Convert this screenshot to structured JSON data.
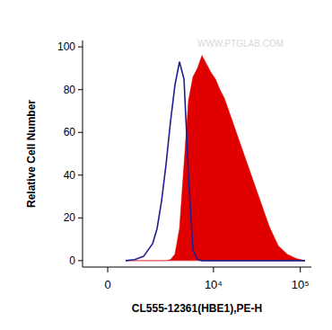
{
  "chart_data": {
    "type": "histogram",
    "x_label": "CL555-12361(HBE1),PE-H",
    "y_label": "Relative Cell Number",
    "annotation": "WWW.PTGLAB.COM",
    "x": [
      602,
      946,
      1342,
      1820,
      2090,
      2393,
      2729,
      3101,
      3513,
      3990,
      4518,
      5110,
      5766,
      6508,
      7350,
      8303,
      9365,
      10537,
      11868,
      13370,
      15067,
      16960,
      21514,
      27277,
      34615,
      43920,
      55678,
      70696,
      89500,
      113553
    ],
    "series": [
      {
        "type": "area",
        "color": "#e00000",
        "values": [
          0,
          0,
          0,
          0,
          0,
          0,
          0,
          0.5,
          3,
          15,
          45,
          75,
          86,
          90,
          96,
          92,
          88,
          85,
          80,
          76,
          70,
          64,
          52,
          40,
          28,
          16,
          7,
          3,
          1,
          0
        ]
      },
      {
        "type": "line",
        "color": "#1f1f8f",
        "values": [
          0,
          0.5,
          2,
          8,
          15,
          28,
          45,
          65,
          82,
          93,
          85,
          40,
          5,
          0.5,
          0,
          0,
          0,
          0,
          0,
          0,
          0,
          0,
          0,
          0,
          0,
          0,
          0,
          0,
          0,
          0
        ]
      }
    ],
    "xlim": [
      -875,
      134000
    ],
    "xticks": [
      0,
      {
        "value": 10000,
        "label": "10⁴"
      },
      {
        "value": 100000,
        "label": "10⁵"
      }
    ],
    "ylim": [
      -3,
      103
    ],
    "yticks": [
      0,
      20,
      40,
      60,
      80,
      100
    ],
    "grid": false
  }
}
